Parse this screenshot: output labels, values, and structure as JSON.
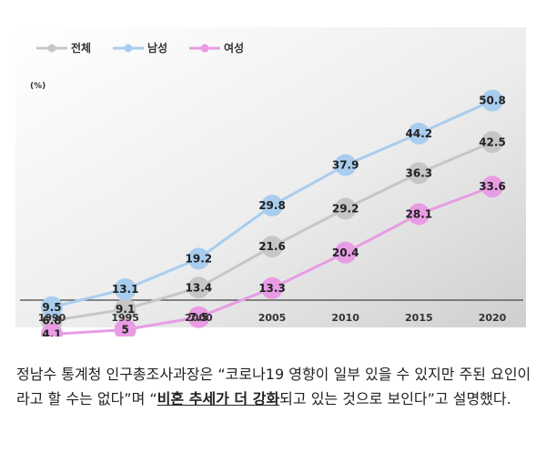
{
  "chart_data": {
    "type": "line",
    "title": "",
    "xlabel": "",
    "ylabel": "",
    "unit_label": "(%)",
    "categories": [
      "1990",
      "1995",
      "2000",
      "2005",
      "2010",
      "2015",
      "2020"
    ],
    "series": [
      {
        "name": "전체",
        "color": "#c6c6c6",
        "values": [
          6.8,
          9.1,
          13.4,
          21.6,
          29.2,
          36.3,
          42.5
        ]
      },
      {
        "name": "남성",
        "color": "#a9cdee",
        "values": [
          9.5,
          13.1,
          19.2,
          29.8,
          37.9,
          44.2,
          50.8
        ]
      },
      {
        "name": "여성",
        "color": "#e89ce4",
        "values": [
          4.1,
          5,
          7.5,
          13.3,
          20.4,
          28.1,
          33.6
        ]
      }
    ],
    "ylim": [
      0,
      55
    ],
    "grid": false,
    "legend": "top-left"
  },
  "caption": {
    "part1": "정남수 통계청 인구총조사과장은 “코로나19 영향이 일부 있을 수 있지만 주된 요인이라고 할 수는 없다”며 “",
    "highlight": "비혼 추세가 더 강화",
    "part2": "되고 있는 것으로 보인다”고 설명했다."
  }
}
